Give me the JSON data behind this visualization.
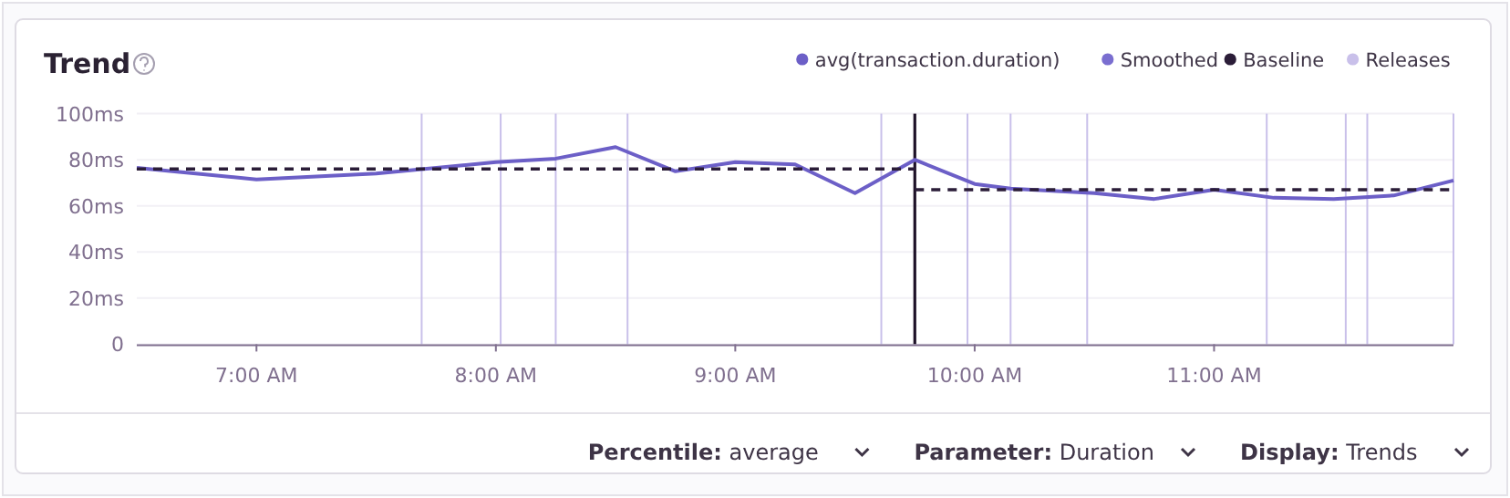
{
  "chart_data": {
    "type": "line",
    "title": "Trend",
    "xlim": [
      6.5,
      12
    ],
    "xticks": [
      {
        "value": 7,
        "label": "7:00 AM"
      },
      {
        "value": 8,
        "label": "8:00 AM"
      },
      {
        "value": 9,
        "label": "9:00 AM"
      },
      {
        "value": 10,
        "label": "10:00 AM"
      },
      {
        "value": 11,
        "label": "11:00 AM"
      }
    ],
    "ylim": [
      0,
      100
    ],
    "yticks": [
      0,
      {
        "value": 20,
        "label": "20ms"
      },
      {
        "value": 40,
        "label": "40ms"
      },
      {
        "value": 60,
        "label": "60ms"
      },
      {
        "value": 80,
        "label": "80ms"
      },
      {
        "value": 100,
        "label": "100ms"
      }
    ],
    "grid": "y",
    "legend": "top right",
    "marker": "none",
    "series": [
      {
        "name": "avg(transaction.duration)",
        "color": "#6c5fc7",
        "x": [
          6.5,
          7,
          7.5,
          8,
          8.25,
          8.5,
          8.75,
          9,
          9.25,
          9.5,
          9.75,
          10,
          10.15,
          10.5,
          10.75,
          11,
          11.25,
          11.5,
          11.75,
          12
        ],
        "values": [
          76.5,
          71.5,
          74,
          79,
          80.5,
          85.5,
          75,
          79,
          78,
          65.5,
          80,
          69.5,
          67.5,
          65.5,
          63,
          67,
          63.5,
          63,
          64.5,
          71
        ]
      },
      {
        "name": "Smoothed",
        "color": "#7a6ed0"
      },
      {
        "name": "Baseline",
        "color": "#2b1d38",
        "line_style": "dashed",
        "x": [
          6.5,
          9.75
        ],
        "values": [
          76,
          76
        ]
      },
      {
        "color": "#2b1d38",
        "line_style": "dashed",
        "x": [
          9.75,
          12
        ],
        "values": [
          67,
          67
        ]
      }
    ],
    "ref_lines": [
      {
        "axis": "x",
        "value": 7.69,
        "label": "Releases",
        "color": "#c9c0ea"
      },
      {
        "axis": "x",
        "value": 8.02,
        "color": "#c9c0ea"
      },
      {
        "axis": "x",
        "value": 8.25,
        "color": "#c9c0ea"
      },
      {
        "axis": "x",
        "value": 8.55,
        "color": "#c9c0ea"
      },
      {
        "axis": "x",
        "value": 9.61,
        "color": "#c9c0ea"
      },
      {
        "axis": "x",
        "value": 9.97,
        "color": "#c9c0ea"
      },
      {
        "axis": "x",
        "value": 10.15,
        "color": "#c9c0ea"
      },
      {
        "axis": "x",
        "value": 10.47,
        "color": "#c9c0ea"
      },
      {
        "axis": "x",
        "value": 11.22,
        "color": "#c9c0ea"
      },
      {
        "axis": "x",
        "value": 11.55,
        "color": "#c9c0ea"
      },
      {
        "axis": "x",
        "value": 11.64,
        "color": "#c9c0ea"
      },
      {
        "axis": "x",
        "value": 12,
        "color": "#c9c0ea"
      },
      {
        "axis": "x",
        "value": 9.75,
        "color": "#1d1127"
      }
    ],
    "annotations": [
      "Percentile: average",
      "Parameter: Duration",
      "Display: Trends"
    ]
  }
}
